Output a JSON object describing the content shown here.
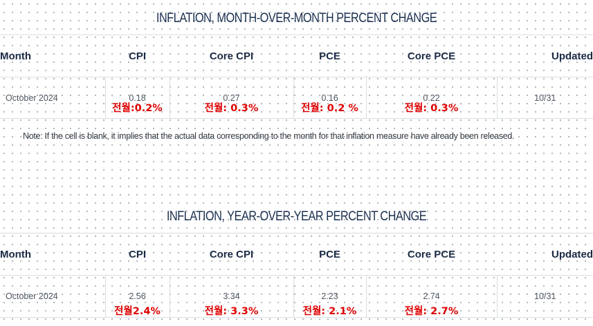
{
  "mom": {
    "title": "INFLATION, MONTH-OVER-MONTH PERCENT CHANGE",
    "headers": {
      "month": "Month",
      "cpi": "CPI",
      "core_cpi": "Core CPI",
      "pce": "PCE",
      "core_pce": "Core PCE",
      "updated": "Updated"
    },
    "row": {
      "month": "October 2024",
      "cpi": "0.18",
      "core_cpi": "0.27",
      "pce": "0.16",
      "core_pce": "0.22",
      "updated": "10/31"
    },
    "notes": {
      "cpi": "전월:0.2%",
      "core_cpi": "전월: 0.3%",
      "pce": "전월: 0.2 %",
      "core_pce": "전월: 0.3%"
    }
  },
  "note_text": "Note: If the cell is blank, it implies that the actual data corresponding to the month for that inflation measure have already been released.",
  "yoy": {
    "title": "INFLATION, YEAR-OVER-YEAR PERCENT CHANGE",
    "headers": {
      "month": "Month",
      "cpi": "CPI",
      "core_cpi": "Core CPI",
      "pce": "PCE",
      "core_pce": "Core PCE",
      "updated": "Updated"
    },
    "row": {
      "month": "October 2024",
      "cpi": "2.56",
      "core_cpi": "3.34",
      "pce": "2.23",
      "core_pce": "2.74",
      "updated": "10/31"
    },
    "notes": {
      "cpi": "전월2.4%",
      "core_cpi": "전월: 3.3%",
      "pce": "전월: 2.1%",
      "core_pce": "전월: 2.7%"
    }
  },
  "colors": {
    "header_text": "#1b2a44",
    "annotation_red": "#e00000",
    "grid_line": "#d9dde2"
  }
}
